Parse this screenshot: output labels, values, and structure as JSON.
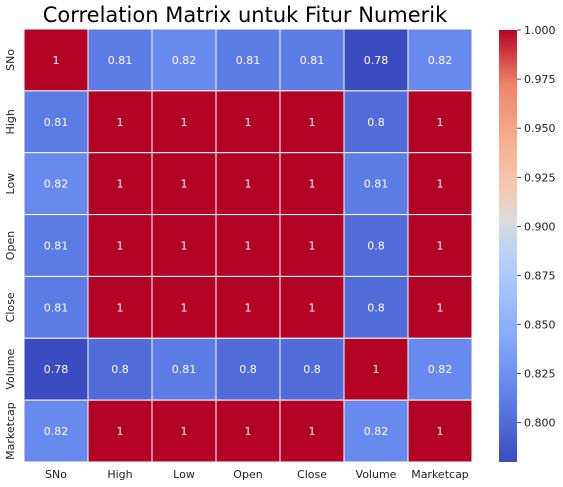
{
  "chart_data": {
    "type": "heatmap",
    "title": "Correlation Matrix untuk Fitur Numerik",
    "xlabel": "",
    "ylabel": "",
    "x_labels": [
      "SNo",
      "High",
      "Low",
      "Open",
      "Close",
      "Volume",
      "Marketcap"
    ],
    "y_labels": [
      "SNo",
      "High",
      "Low",
      "Open",
      "Close",
      "Volume",
      "Marketcap"
    ],
    "values": [
      [
        1,
        0.81,
        0.82,
        0.81,
        0.81,
        0.78,
        0.82
      ],
      [
        0.81,
        1,
        1,
        1,
        1,
        0.8,
        1
      ],
      [
        0.82,
        1,
        1,
        1,
        1,
        0.81,
        1
      ],
      [
        0.81,
        1,
        1,
        1,
        1,
        0.8,
        1
      ],
      [
        0.81,
        1,
        1,
        1,
        1,
        0.8,
        1
      ],
      [
        0.78,
        0.8,
        0.81,
        0.8,
        0.8,
        1,
        0.82
      ],
      [
        0.82,
        1,
        1,
        1,
        1,
        0.82,
        1
      ]
    ],
    "annotations": [
      [
        "1",
        "0.81",
        "0.82",
        "0.81",
        "0.81",
        "0.78",
        "0.82"
      ],
      [
        "0.81",
        "1",
        "1",
        "1",
        "1",
        "0.8",
        "1"
      ],
      [
        "0.82",
        "1",
        "1",
        "1",
        "1",
        "0.81",
        "1"
      ],
      [
        "0.81",
        "1",
        "1",
        "1",
        "1",
        "0.8",
        "1"
      ],
      [
        "0.81",
        "1",
        "1",
        "1",
        "1",
        "0.8",
        "1"
      ],
      [
        "0.78",
        "0.8",
        "0.81",
        "0.8",
        "0.8",
        "1",
        "0.82"
      ],
      [
        "0.82",
        "1",
        "1",
        "1",
        "1",
        "0.82",
        "1"
      ]
    ],
    "colormap": "coolwarm",
    "colorbar": {
      "range": [
        0.78,
        1.0
      ],
      "ticks": [
        0.8,
        0.825,
        0.85,
        0.875,
        0.9,
        0.925,
        0.95,
        0.975,
        1.0
      ],
      "tick_labels": [
        "0.800",
        "0.825",
        "0.850",
        "0.875",
        "0.900",
        "0.925",
        "0.950",
        "0.975",
        "1.000"
      ],
      "placement": "right"
    },
    "cell_border_color": "#ffffff"
  }
}
